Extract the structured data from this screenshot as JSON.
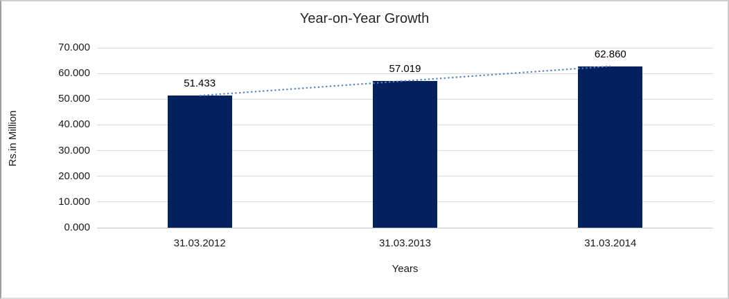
{
  "chart_data": {
    "type": "bar",
    "title": "Year-on-Year Growth",
    "xlabel": "Years",
    "ylabel": "Rs.in Million",
    "categories": [
      "31.03.2012",
      "31.03.2013",
      "31.03.2014"
    ],
    "values": [
      51.433,
      57.019,
      62.86
    ],
    "value_labels": [
      "51.433",
      "57.019",
      "62.860"
    ],
    "ylim": [
      0,
      70
    ],
    "ytick_step": 10,
    "yticks": [
      0,
      10,
      20,
      30,
      40,
      50,
      60,
      70
    ],
    "ytick_labels": [
      "0.000",
      "10.000",
      "20.000",
      "30.000",
      "40.000",
      "50.000",
      "60.000",
      "70.000"
    ],
    "grid": true,
    "legend_position": "none",
    "trendline": {
      "type": "linear",
      "style": "dotted",
      "color": "#4E86C8"
    },
    "colors": {
      "bar": "#04215E",
      "gridline": "#D9D9D9",
      "zero_line": "#C6C6C6",
      "text": "#1A1A1A"
    }
  }
}
